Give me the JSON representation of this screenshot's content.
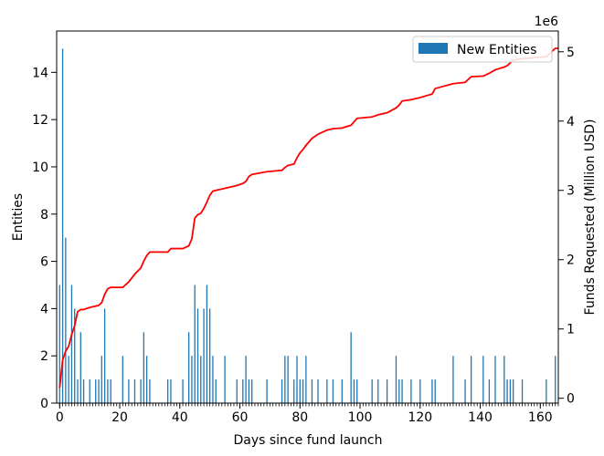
{
  "chart_data": {
    "type": "bar",
    "title": "",
    "xlabel": "Days since fund launch",
    "ylabel": "Entities",
    "y2label": "Funds Requested (Million USD)",
    "y2_offset_text": "1e6",
    "xlim": [
      -1,
      166
    ],
    "ylim": [
      0,
      15.75
    ],
    "y2lim": [
      -70000,
      5300000
    ],
    "xticks": [
      0,
      20,
      40,
      60,
      80,
      100,
      120,
      140,
      160
    ],
    "xtick_labels": [
      "0",
      "20",
      "40",
      "60",
      "80",
      "100",
      "120",
      "140",
      "160"
    ],
    "yticks": [
      0,
      2,
      4,
      6,
      8,
      10,
      12,
      14
    ],
    "ytick_labels": [
      "0",
      "2",
      "4",
      "6",
      "8",
      "10",
      "12",
      "14"
    ],
    "y2ticks": [
      0,
      1000000,
      2000000,
      3000000,
      4000000,
      5000000
    ],
    "y2tick_labels": [
      "0",
      "1",
      "2",
      "3",
      "4",
      "5"
    ],
    "grid": false,
    "legend": {
      "position": "top-right",
      "entries": [
        "New Entities"
      ]
    },
    "colors": {
      "bars": "#1f77b4",
      "line": "#ff0000"
    },
    "series": [
      {
        "name": "New Entities",
        "kind": "bar",
        "x": [
          0,
          1,
          2,
          3,
          4,
          5,
          6,
          7,
          8,
          10,
          12,
          13,
          14,
          15,
          16,
          17,
          21,
          23,
          25,
          27,
          28,
          29,
          30,
          36,
          37,
          41,
          43,
          44,
          45,
          46,
          47,
          48,
          49,
          50,
          51,
          52,
          55,
          59,
          61,
          62,
          63,
          64,
          69,
          74,
          75,
          76,
          78,
          79,
          80,
          81,
          82,
          84,
          86,
          89,
          91,
          94,
          97,
          98,
          99,
          104,
          106,
          109,
          112,
          113,
          114,
          117,
          120,
          124,
          125,
          131,
          135,
          137,
          141,
          143,
          145,
          148,
          149,
          150,
          151,
          154,
          162,
          165
        ],
        "values": [
          5,
          15,
          7,
          2,
          5,
          4,
          1,
          3,
          1,
          1,
          1,
          1,
          2,
          4,
          1,
          1,
          2,
          1,
          1,
          1,
          3,
          2,
          1,
          1,
          1,
          1,
          3,
          2,
          5,
          4,
          2,
          4,
          5,
          4,
          2,
          1,
          2,
          1,
          1,
          2,
          1,
          1,
          1,
          1,
          2,
          2,
          1,
          2,
          1,
          1,
          2,
          1,
          1,
          1,
          1,
          1,
          3,
          1,
          1,
          1,
          1,
          1,
          2,
          1,
          1,
          1,
          1,
          1,
          1,
          2,
          1,
          2,
          2,
          1,
          2,
          2,
          1,
          1,
          1,
          1,
          1,
          2
        ]
      },
      {
        "name": "Funds Requested",
        "kind": "line",
        "x": [
          0,
          1,
          2,
          3,
          4,
          5,
          6,
          7,
          8,
          10,
          12,
          13,
          14,
          15,
          16,
          17,
          21,
          23,
          25,
          27,
          28,
          29,
          30,
          36,
          37,
          41,
          43,
          44,
          45,
          46,
          47,
          48,
          49,
          50,
          51,
          52,
          55,
          59,
          61,
          62,
          63,
          64,
          69,
          74,
          75,
          76,
          78,
          79,
          80,
          81,
          82,
          84,
          86,
          89,
          91,
          94,
          97,
          98,
          99,
          104,
          106,
          109,
          112,
          113,
          114,
          117,
          120,
          124,
          125,
          131,
          135,
          137,
          141,
          143,
          145,
          148,
          149,
          150,
          151,
          154,
          162,
          165
        ],
        "values": [
          150000,
          550000,
          680000,
          750000,
          920000,
          1050000,
          1250000,
          1280000,
          1280000,
          1310000,
          1330000,
          1340000,
          1380000,
          1500000,
          1580000,
          1600000,
          1600000,
          1680000,
          1790000,
          1880000,
          1980000,
          2060000,
          2110000,
          2110000,
          2160000,
          2160000,
          2200000,
          2300000,
          2600000,
          2650000,
          2670000,
          2740000,
          2830000,
          2930000,
          2990000,
          3000000,
          3030000,
          3070000,
          3100000,
          3130000,
          3200000,
          3230000,
          3270000,
          3290000,
          3330000,
          3360000,
          3380000,
          3470000,
          3540000,
          3590000,
          3650000,
          3750000,
          3810000,
          3870000,
          3890000,
          3900000,
          3940000,
          3990000,
          4040000,
          4060000,
          4090000,
          4120000,
          4190000,
          4230000,
          4290000,
          4310000,
          4340000,
          4390000,
          4470000,
          4540000,
          4560000,
          4640000,
          4650000,
          4690000,
          4740000,
          4780000,
          4800000,
          4840000,
          4880000,
          4900000,
          4930000,
          5050000
        ]
      }
    ]
  }
}
